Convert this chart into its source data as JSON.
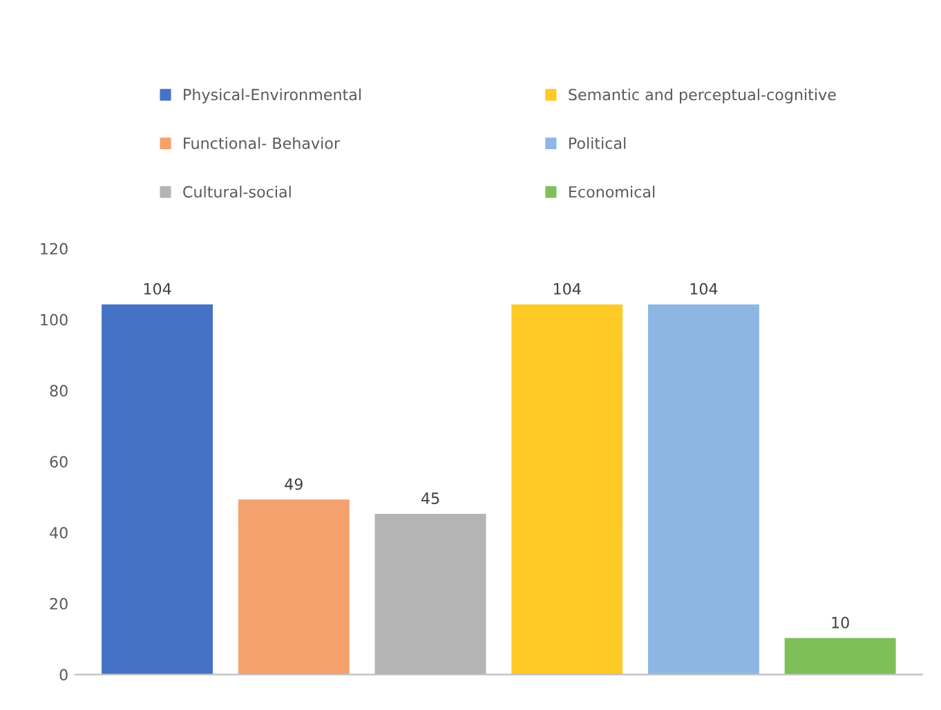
{
  "chart_data": {
    "type": "bar",
    "categories": [
      null,
      null,
      null,
      null,
      null,
      null
    ],
    "series": [
      {
        "name": "Physical-Environmental",
        "color": "#4472c4",
        "values": [
          104,
          null,
          null,
          null,
          null,
          null
        ]
      },
      {
        "name": "Functional- Behavior",
        "color": "#f4a16e",
        "values": [
          null,
          49,
          null,
          null,
          null,
          null
        ]
      },
      {
        "name": "Cultural-social",
        "color": "#b4b4b4",
        "values": [
          null,
          null,
          45,
          null,
          null,
          null
        ]
      },
      {
        "name": "Semantic and perceptual-cognitive",
        "color": "#ffc926",
        "values": [
          null,
          null,
          null,
          104,
          null,
          null
        ]
      },
      {
        "name": "Political",
        "color": "#8db6e4",
        "values": [
          null,
          null,
          null,
          null,
          104,
          null
        ]
      },
      {
        "name": "Economical",
        "color": "#7fbf5a",
        "values": [
          null,
          null,
          null,
          null,
          null,
          10
        ]
      }
    ],
    "ylim": [
      0,
      120
    ],
    "yticks": [
      0,
      20,
      40,
      60,
      80,
      100,
      120
    ],
    "grid": false,
    "legend": "top",
    "data_labels": true
  }
}
